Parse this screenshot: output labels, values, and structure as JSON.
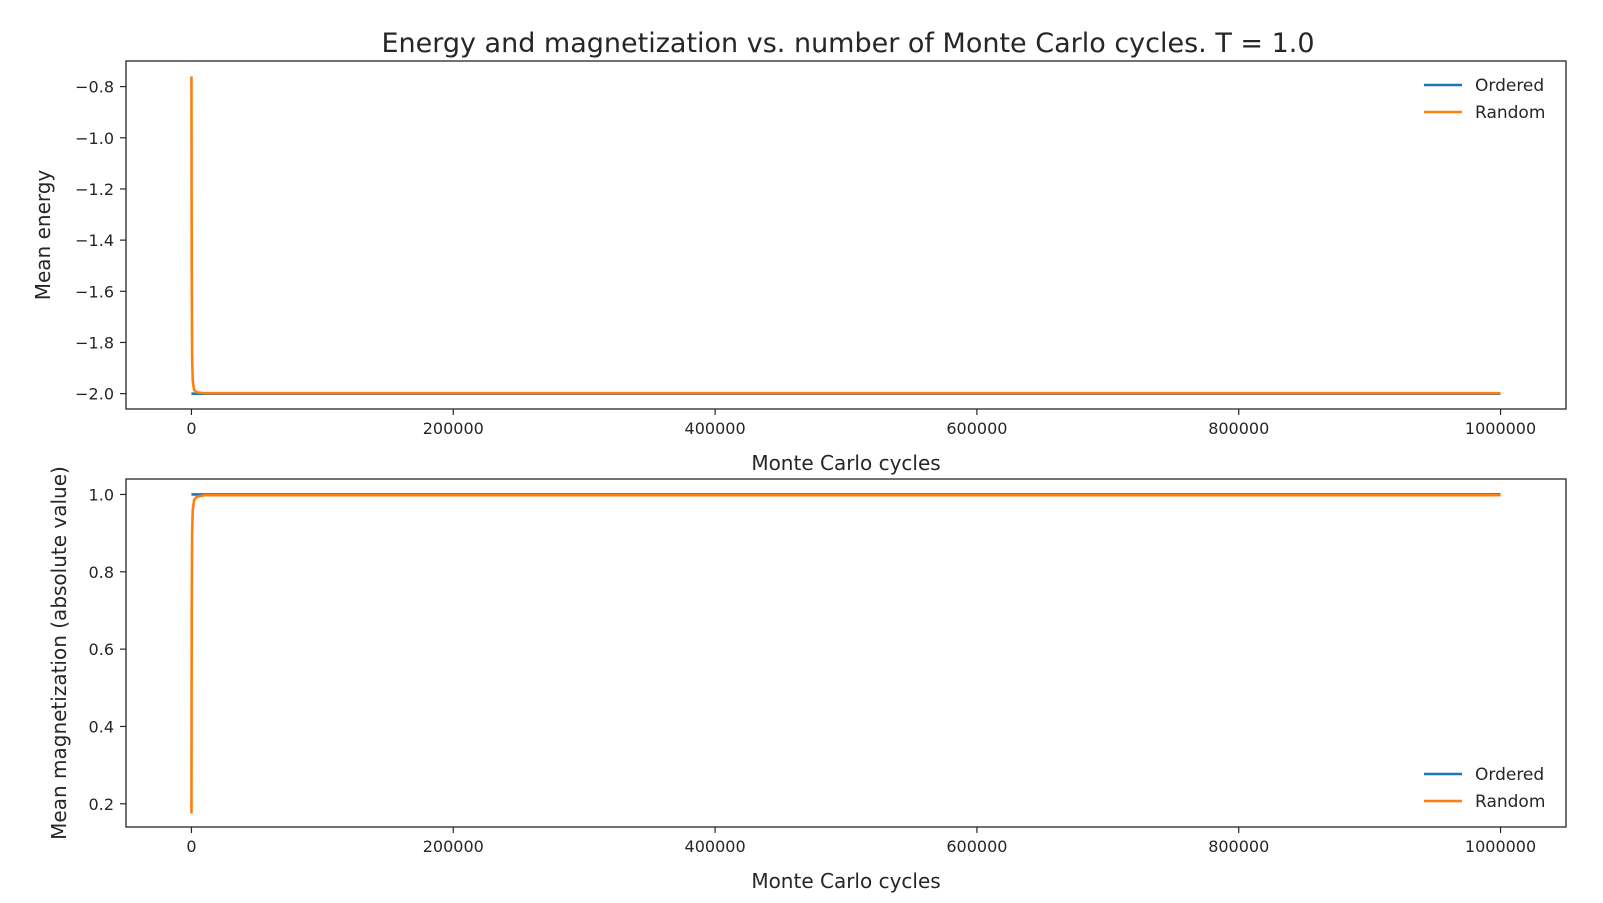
{
  "title": "Energy and magnetization vs. number of Monte Carlo cycles. T = 1.0",
  "chart_data": [
    {
      "type": "line",
      "xlabel": "Monte Carlo cycles",
      "ylabel": "Mean energy",
      "xlim": [
        -50000,
        1050000
      ],
      "ylim": [
        -2.06,
        -0.7
      ],
      "xticks": [
        0,
        200000,
        400000,
        600000,
        800000,
        1000000
      ],
      "xtick_labels": [
        "0",
        "200000",
        "400000",
        "600000",
        "800000",
        "1000000"
      ],
      "yticks": [
        -0.8,
        -1.0,
        -1.2,
        -1.4,
        -1.6,
        -1.8,
        -2.0
      ],
      "ytick_labels": [
        "−0.8",
        "−1.0",
        "−1.2",
        "−1.4",
        "−1.6",
        "−1.8",
        "−2.0"
      ],
      "legend_position": "top-right",
      "grid": false,
      "series": [
        {
          "name": "Ordered",
          "color": "#1f77b4",
          "x": [
            0,
            1000000
          ],
          "y": [
            -2.0,
            -2.0
          ]
        },
        {
          "name": "Random",
          "color": "#ff7f0e",
          "x": [
            0,
            200,
            500,
            1000,
            2000,
            4000,
            10000,
            1000000
          ],
          "y": [
            -0.76,
            -1.5,
            -1.85,
            -1.95,
            -1.985,
            -1.995,
            -1.998,
            -1.998
          ]
        }
      ]
    },
    {
      "type": "line",
      "xlabel": "Monte Carlo cycles",
      "ylabel": "Mean magnetization (absolute value)",
      "xlim": [
        -50000,
        1050000
      ],
      "ylim": [
        0.14,
        1.04
      ],
      "xticks": [
        0,
        200000,
        400000,
        600000,
        800000,
        1000000
      ],
      "xtick_labels": [
        "0",
        "200000",
        "400000",
        "600000",
        "800000",
        "1000000"
      ],
      "yticks": [
        0.2,
        0.4,
        0.6,
        0.8,
        1.0
      ],
      "ytick_labels": [
        "0.2",
        "0.4",
        "0.6",
        "0.8",
        "1.0"
      ],
      "legend_position": "bottom-right",
      "grid": false,
      "series": [
        {
          "name": "Ordered",
          "color": "#1f77b4",
          "x": [
            0,
            1000000
          ],
          "y": [
            1.0,
            1.0
          ]
        },
        {
          "name": "Random",
          "color": "#ff7f0e",
          "x": [
            0,
            200,
            500,
            1000,
            2000,
            4000,
            10000,
            1000000
          ],
          "y": [
            0.175,
            0.7,
            0.9,
            0.96,
            0.985,
            0.994,
            0.998,
            0.998
          ]
        }
      ]
    }
  ]
}
